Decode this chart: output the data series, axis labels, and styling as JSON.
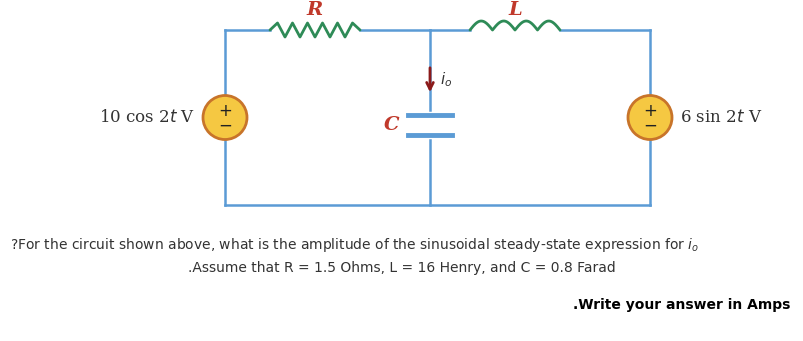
{
  "bg_color": "#ffffff",
  "circuit_color": "#5b9bd5",
  "resistor_color": "#2e8b57",
  "inductor_color": "#2e8b57",
  "capacitor_wire_color": "#5b9bd5",
  "capacitor_plate_color": "#5b9bd5",
  "arrow_color": "#8b1a1a",
  "source_fill": "#f5c842",
  "source_edge_color": "#c8742a",
  "R_label_color": "#c0392b",
  "L_label_color": "#c0392b",
  "C_label_color": "#c0392b",
  "io_label_color": "#333333",
  "text_color": "#333333",
  "bold_text_color": "#000000",
  "line1": "?For the circuit shown above, what is the amplitude of the sinusoidal steady-state expression for $i_o$",
  "line2": ".Assume that R = 1.5 Ohms, L = 16 Henry, and C = 0.8 Farad",
  "line3": ".Write your answer in Amps",
  "left_source_label": "10 cos 2$t$ V",
  "right_source_label": "6 sin 2$t$ V",
  "R_label": "R",
  "L_label": "L",
  "C_label": "C",
  "io_label": "$i_o$"
}
